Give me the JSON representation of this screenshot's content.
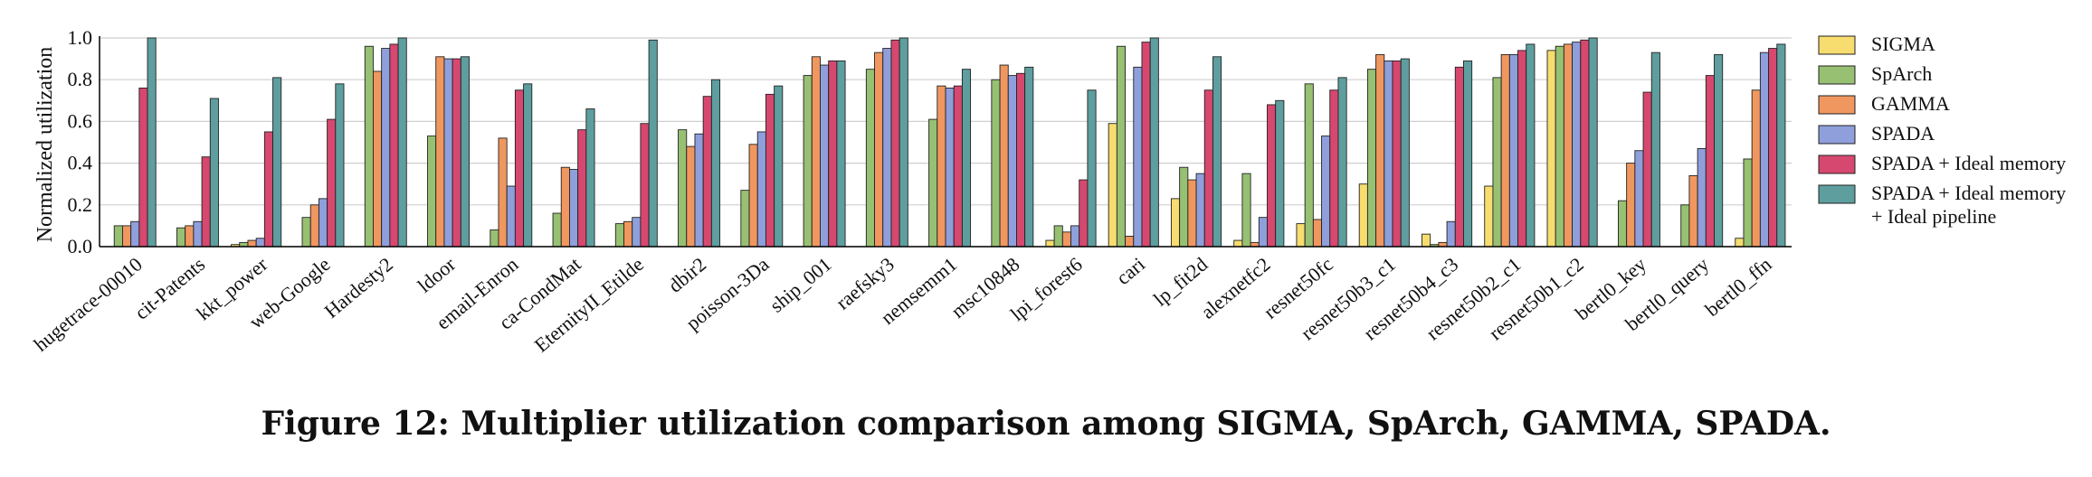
{
  "caption": "Figure 12: Multiplier utilization comparison among SIGMA, SpArch, GAMMA, SPADA.",
  "chart_data": {
    "type": "bar",
    "title": "",
    "xlabel": "",
    "ylabel": "Normalized utilization",
    "ylim": [
      0,
      1.0
    ],
    "yticks": [
      "0.0",
      "0.2",
      "0.4",
      "0.6",
      "0.8",
      "1.0"
    ],
    "grid": "horizontal",
    "legend_position": "right",
    "categories": [
      "hugetrace-00010",
      "cit-Patents",
      "kkt_power",
      "web-Google",
      "Hardesty2",
      "ldoor",
      "email-Enron",
      "ca-CondMat",
      "EternityII_Etilde",
      "dbir2",
      "poisson-3Da",
      "ship_001",
      "raefsky3",
      "nemsemm1",
      "msc10848",
      "lpi_forest6",
      "cari",
      "lp_fit2d",
      "alexnetfc2",
      "resnet50fc",
      "resnet50b3_c1",
      "resnet50b4_c3",
      "resnet50b2_c1",
      "resnet50b1_c2",
      "bertl0_key",
      "bertl0_query",
      "bertl0_ffn"
    ],
    "series": [
      {
        "name": "SIGMA",
        "color": "#f7dc6f",
        "values": [
          0.0,
          0.0,
          0.01,
          0.0,
          0.0,
          0.0,
          0.0,
          0.0,
          0.0,
          0.0,
          0.0,
          0.0,
          0.0,
          0.0,
          0.0,
          0.03,
          0.59,
          0.23,
          0.03,
          0.11,
          0.3,
          0.06,
          0.29,
          0.94,
          0.0,
          0.0,
          0.04
        ]
      },
      {
        "name": "SpArch",
        "color": "#97c072",
        "values": [
          0.1,
          0.09,
          0.02,
          0.14,
          0.96,
          0.53,
          0.08,
          0.16,
          0.11,
          0.56,
          0.27,
          0.82,
          0.85,
          0.61,
          0.8,
          0.1,
          0.96,
          0.38,
          0.35,
          0.78,
          0.85,
          0.01,
          0.81,
          0.96,
          0.22,
          0.2,
          0.42
        ]
      },
      {
        "name": "GAMMA",
        "color": "#f0975f",
        "values": [
          0.1,
          0.1,
          0.03,
          0.2,
          0.84,
          0.91,
          0.52,
          0.38,
          0.12,
          0.48,
          0.49,
          0.91,
          0.93,
          0.77,
          0.87,
          0.07,
          0.05,
          0.32,
          0.02,
          0.13,
          0.92,
          0.02,
          0.92,
          0.97,
          0.4,
          0.34,
          0.75
        ]
      },
      {
        "name": "SPADA",
        "color": "#8e9fdb",
        "values": [
          0.12,
          0.12,
          0.04,
          0.23,
          0.95,
          0.9,
          0.29,
          0.37,
          0.14,
          0.54,
          0.55,
          0.87,
          0.95,
          0.76,
          0.82,
          0.1,
          0.86,
          0.35,
          0.14,
          0.53,
          0.89,
          0.12,
          0.92,
          0.98,
          0.46,
          0.47,
          0.93
        ]
      },
      {
        "name": "SPADA + Ideal memory",
        "color": "#d6486f",
        "values": [
          0.76,
          0.43,
          0.55,
          0.61,
          0.97,
          0.9,
          0.75,
          0.56,
          0.59,
          0.72,
          0.73,
          0.89,
          0.99,
          0.77,
          0.83,
          0.32,
          0.98,
          0.75,
          0.68,
          0.75,
          0.89,
          0.86,
          0.94,
          0.99,
          0.74,
          0.82,
          0.95
        ]
      },
      {
        "name": "SPADA + Ideal memory + Ideal pipeline",
        "color": "#5e9e9f",
        "values": [
          1.0,
          0.71,
          0.81,
          0.78,
          1.0,
          0.91,
          0.78,
          0.66,
          0.99,
          0.8,
          0.77,
          0.89,
          1.0,
          0.85,
          0.86,
          0.75,
          1.0,
          0.91,
          0.7,
          0.81,
          0.9,
          0.89,
          0.97,
          1.0,
          0.93,
          0.92,
          0.97
        ]
      }
    ]
  }
}
